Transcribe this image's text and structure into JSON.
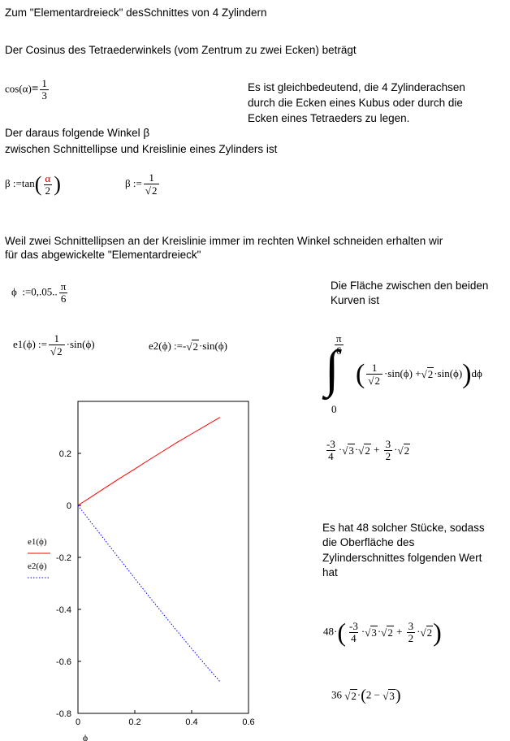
{
  "heading": "Zum \"Elementardreieck\" desSchnittes von 4 Zylindern",
  "cos_intro": "Der Cosinus des Tetraederwinkels (vom Zentrum zu zwei Ecken) beträgt",
  "cos_eq": {
    "lhs": "cos(α)",
    "eq": "=",
    "num": "1",
    "den": "3"
  },
  "side_note": [
    "Es ist gleichbedeutend, die 4 Zylinderachsen",
    "durch die Ecken eines Kubus oder durch die",
    "Ecken eines Tetraeders zu legen."
  ],
  "angle_intro": [
    "Der daraus folgende Winkel  β",
    "zwischen Schnittellipse und Kreislinie eines Zylinders ist"
  ],
  "beta_def1": {
    "lhs": "β",
    "assign": ":=",
    "fn": "tan",
    "num": "α",
    "den": "2"
  },
  "beta_def2": {
    "lhs": "β",
    "assign": ":=",
    "num": "1",
    "den_rad": "2"
  },
  "ellipse_text": [
    "Weil zwei Schnittellipsen an der Kreislinie immer im rechten Winkel schneiden erhalten wir",
    "für das abgewickelte \"Elementardreieck\""
  ],
  "phi_range": {
    "lhs": "ϕ",
    "assign": ":=",
    "range": "0,.05..",
    "num": "π",
    "den": "6"
  },
  "area_text": [
    "Die Fläche zwischen den beiden",
    "Kurven ist"
  ],
  "e1_def": {
    "lhs": "e1(ϕ)",
    "assign": ":=",
    "num": "1",
    "den_rad": "2",
    "tail": "·sin(ϕ)"
  },
  "e2_def": {
    "lhs": "e2(ϕ)",
    "assign": ":=",
    "neg": "-",
    "rad": "2",
    "tail": "·sin(ϕ)"
  },
  "integral": {
    "upper_num": "π",
    "upper_den": "6",
    "lower": "0",
    "num": "1",
    "den_rad": "2",
    "mid": "·sin(ϕ) +",
    "rad": "2",
    "tail": "·sin(ϕ)",
    "d": "dϕ"
  },
  "result1": {
    "neg_num": "-3",
    "den1": "4",
    "r1": "3",
    "r2": "2",
    "plus": "+",
    "num2": "3",
    "den2": "2",
    "r3": "2"
  },
  "pieces_text": [
    "Es hat 48 solcher Stücke, sodass",
    "die Oberfläche des",
    "Zylinderschnittes folgenden Wert",
    "hat"
  ],
  "result2": {
    "factor": "48·",
    "neg_num": "-3",
    "den1": "4",
    "r1": "3",
    "r2": "2",
    "plus": "+",
    "num2": "3",
    "den2": "2",
    "r3": "2"
  },
  "result3": {
    "a": "36",
    "r1": "2",
    "b": "2",
    "minus": "−",
    "r2": "3"
  },
  "chart_data": {
    "type": "line",
    "xlabel": "ϕ",
    "xlim": [
      0,
      0.6
    ],
    "ylim": [
      -0.8,
      0.4
    ],
    "xticks": [
      "0",
      "0.2",
      "0.4",
      "0.6"
    ],
    "yticks": [
      "0.2",
      "0",
      "-0.2",
      "-0.4",
      "-0.6",
      "-0.8"
    ],
    "legend": [
      "e1(ϕ)",
      "e2(ϕ)"
    ],
    "series": [
      {
        "name": "e1(ϕ)",
        "color": "#ff0000",
        "style": "solid",
        "x": [
          0,
          0.05,
          0.1,
          0.15,
          0.2,
          0.25,
          0.3,
          0.35,
          0.4,
          0.45,
          0.5
        ],
        "y": [
          0,
          0.035,
          0.071,
          0.106,
          0.14,
          0.175,
          0.209,
          0.243,
          0.275,
          0.307,
          0.339
        ]
      },
      {
        "name": "e2(ϕ)",
        "color": "#0000ff",
        "style": "dotted",
        "x": [
          0,
          0.05,
          0.1,
          0.15,
          0.2,
          0.25,
          0.3,
          0.35,
          0.4,
          0.45,
          0.5
        ],
        "y": [
          0,
          -0.071,
          -0.141,
          -0.211,
          -0.281,
          -0.35,
          -0.418,
          -0.485,
          -0.551,
          -0.616,
          -0.678
        ]
      }
    ]
  }
}
